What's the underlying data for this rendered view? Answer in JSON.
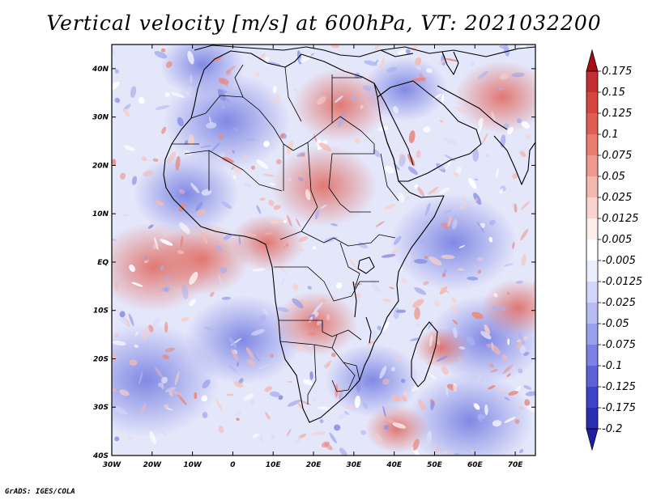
{
  "title": "Vertical velocity [m/s] at 600hPa, VT: 2021032200",
  "footer": "GrADS: IGES/COLA",
  "map": {
    "variable": "Vertical velocity",
    "units": "m/s",
    "level": "600hPa",
    "valid_time": "2021032200",
    "lon_range": [
      -30,
      75
    ],
    "lat_range": [
      -40,
      45
    ],
    "lat_ticks": [
      {
        "value": 40,
        "label": "40N"
      },
      {
        "value": 30,
        "label": "30N"
      },
      {
        "value": 20,
        "label": "20N"
      },
      {
        "value": 10,
        "label": "10N"
      },
      {
        "value": 0,
        "label": "EQ"
      },
      {
        "value": -10,
        "label": "10S"
      },
      {
        "value": -20,
        "label": "20S"
      },
      {
        "value": -30,
        "label": "30S"
      },
      {
        "value": -40,
        "label": "40S"
      }
    ],
    "lon_ticks": [
      {
        "value": -30,
        "label": "30W"
      },
      {
        "value": -20,
        "label": "20W"
      },
      {
        "value": -10,
        "label": "10W"
      },
      {
        "value": 0,
        "label": "0"
      },
      {
        "value": 10,
        "label": "10E"
      },
      {
        "value": 20,
        "label": "20E"
      },
      {
        "value": 30,
        "label": "30E"
      },
      {
        "value": 40,
        "label": "40E"
      },
      {
        "value": 50,
        "label": "50E"
      },
      {
        "value": 60,
        "label": "60E"
      },
      {
        "value": 70,
        "label": "70E"
      }
    ]
  },
  "colorbar": {
    "levels": [
      {
        "label": "0.175",
        "color": "#b2182b"
      },
      {
        "label": "0.15",
        "color": "#c42f35"
      },
      {
        "label": "0.125",
        "color": "#d6453f"
      },
      {
        "label": "0.1",
        "color": "#e05f55"
      },
      {
        "label": "0.075",
        "color": "#e97b6f"
      },
      {
        "label": "0.05",
        "color": "#f09a8f"
      },
      {
        "label": "0.025",
        "color": "#f5b8b0"
      },
      {
        "label": "0.0125",
        "color": "#fad5d0"
      },
      {
        "label": "0.005",
        "color": "#fdeeec"
      },
      {
        "label": "-0.005",
        "color": "#ffffff"
      },
      {
        "label": "-0.0125",
        "color": "#eceefc"
      },
      {
        "label": "-0.025",
        "color": "#d3d6f8"
      },
      {
        "label": "-0.05",
        "color": "#b7bcf2"
      },
      {
        "label": "-0.075",
        "color": "#9aa0ec"
      },
      {
        "label": "-0.1",
        "color": "#7c82e3"
      },
      {
        "label": "-0.125",
        "color": "#5d63d7"
      },
      {
        "label": "-0.175",
        "color": "#3e44c7"
      },
      {
        "label": "-0.2",
        "color": "#2a2fb2"
      }
    ],
    "top_arrow_color": "#a50f15",
    "bottom_arrow_color": "#1f1fa6"
  }
}
